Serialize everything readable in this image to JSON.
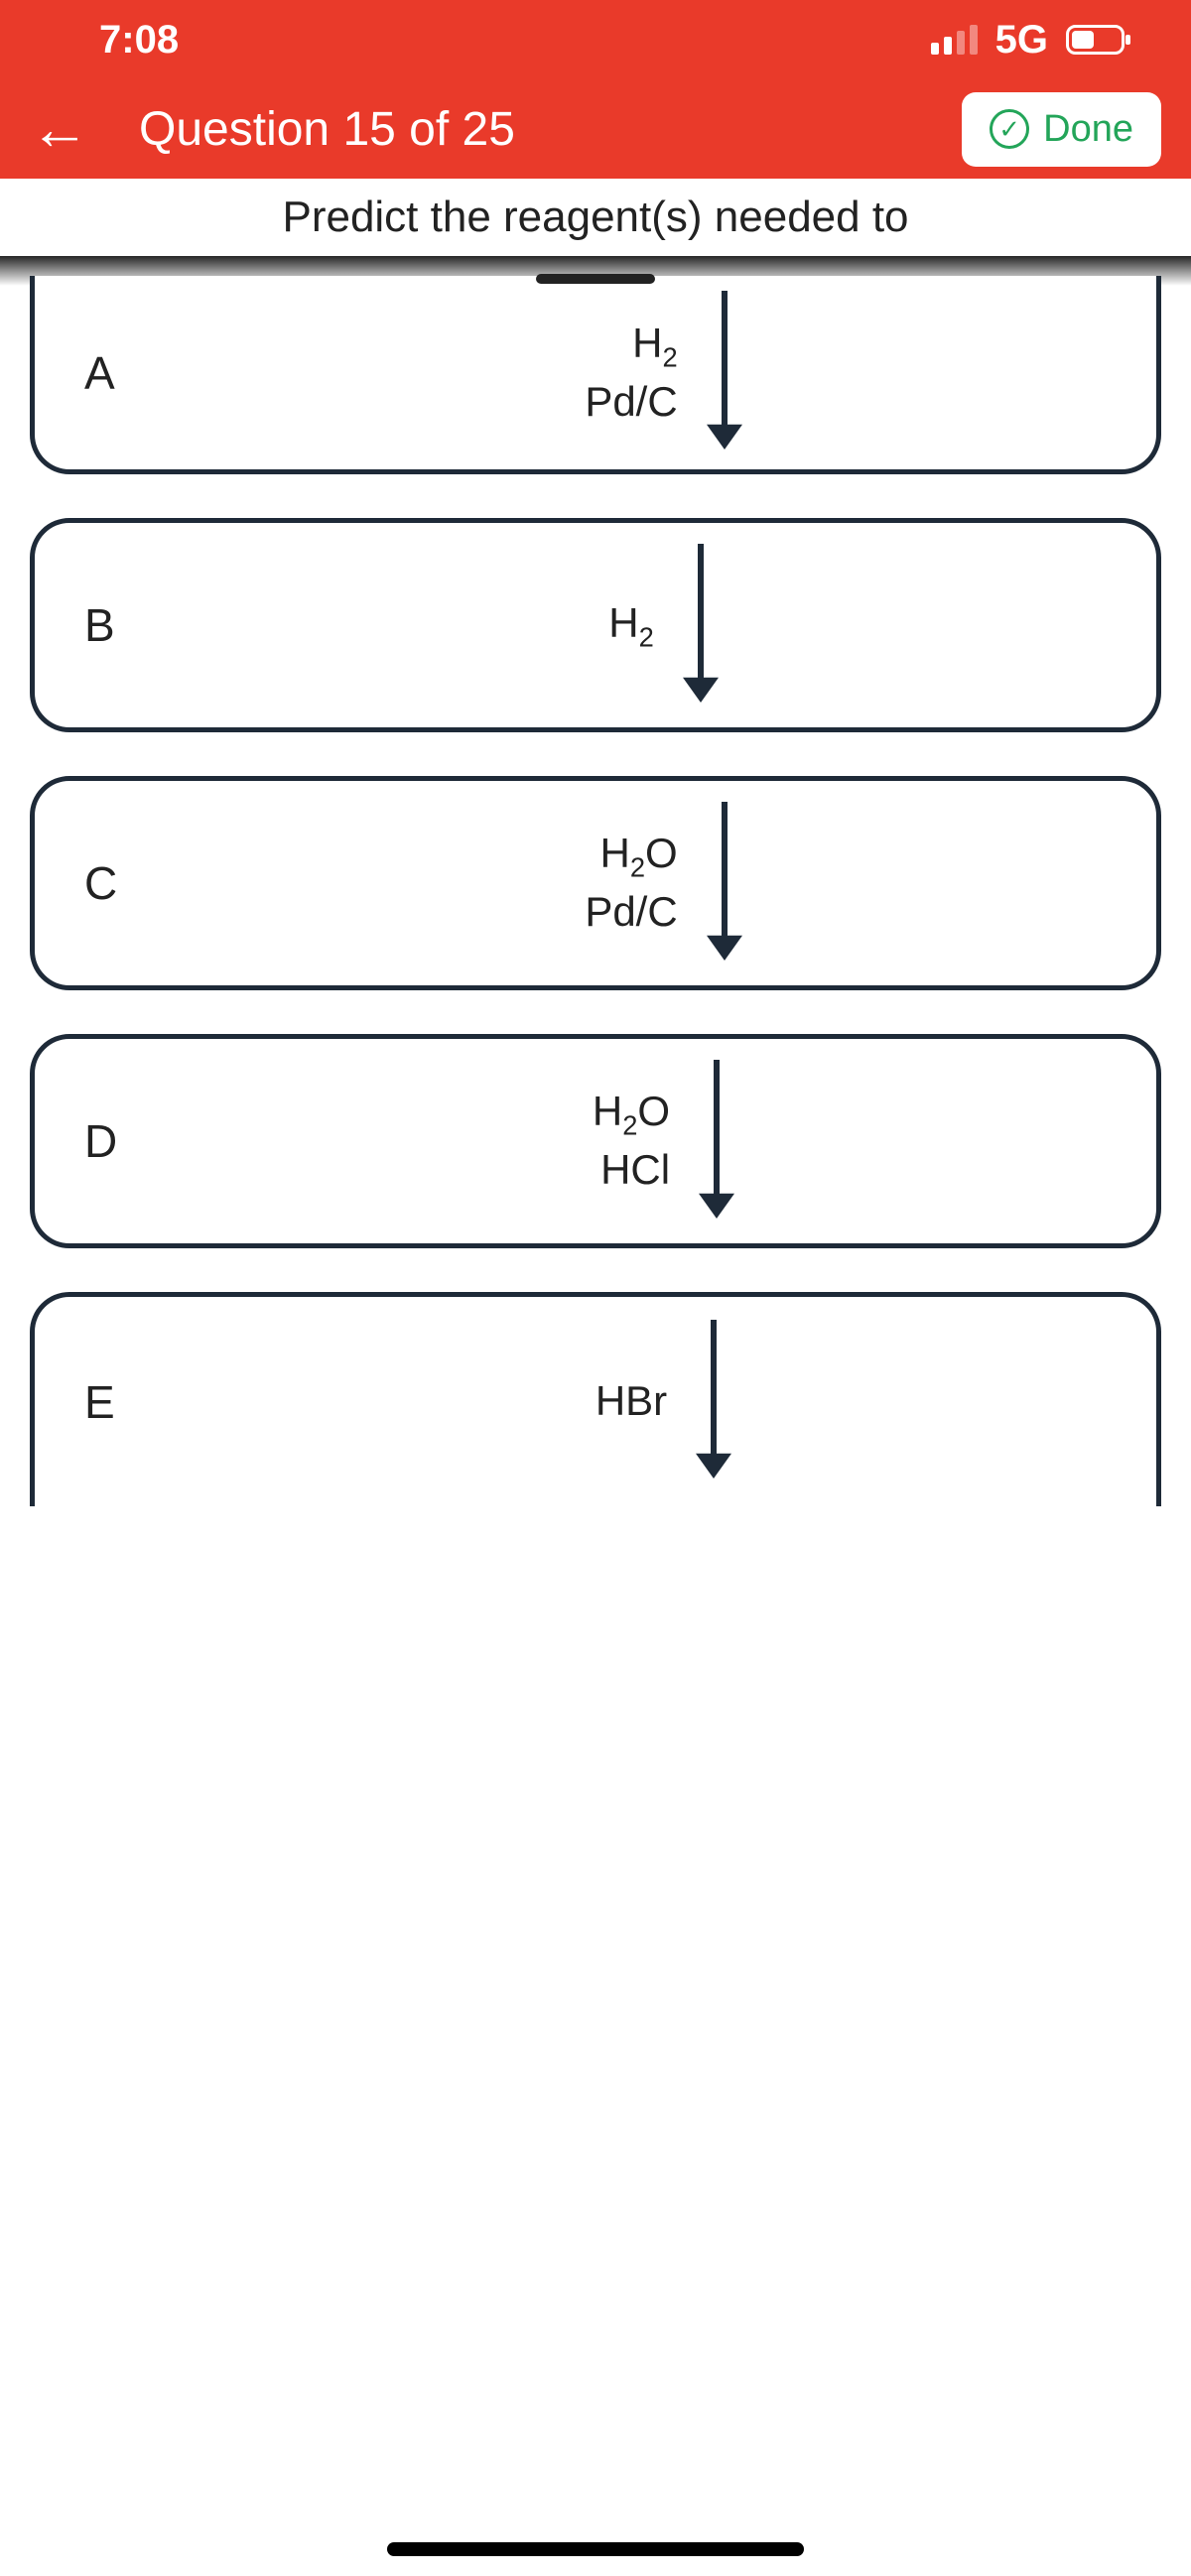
{
  "status": {
    "time": "7:08",
    "network": "5G"
  },
  "header": {
    "title": "Question 15 of 25",
    "done_label": "Done"
  },
  "prompt": "Predict the reagent(s) needed to",
  "colors": {
    "accent": "#e93a2a",
    "card_border": "#1e2a38",
    "done_green": "#23a559"
  },
  "options": [
    {
      "letter": "A",
      "line1_base": "H",
      "line1_sub": "2",
      "line2": "Pd/C",
      "first": true
    },
    {
      "letter": "B",
      "line1_base": "H",
      "line1_sub": "2",
      "line2": ""
    },
    {
      "letter": "C",
      "line1_base": "H",
      "line1_sub": "2",
      "line1_suffix": "O",
      "line2": "Pd/C"
    },
    {
      "letter": "D",
      "line1_base": "H",
      "line1_sub": "2",
      "line1_suffix": "O",
      "line2": "HCl"
    },
    {
      "letter": "E",
      "line1_plain": "HBr",
      "line2": "",
      "last": true
    }
  ],
  "arrow": {
    "color": "#1e2a38",
    "stroke": 6,
    "head": 18,
    "length": 160
  }
}
